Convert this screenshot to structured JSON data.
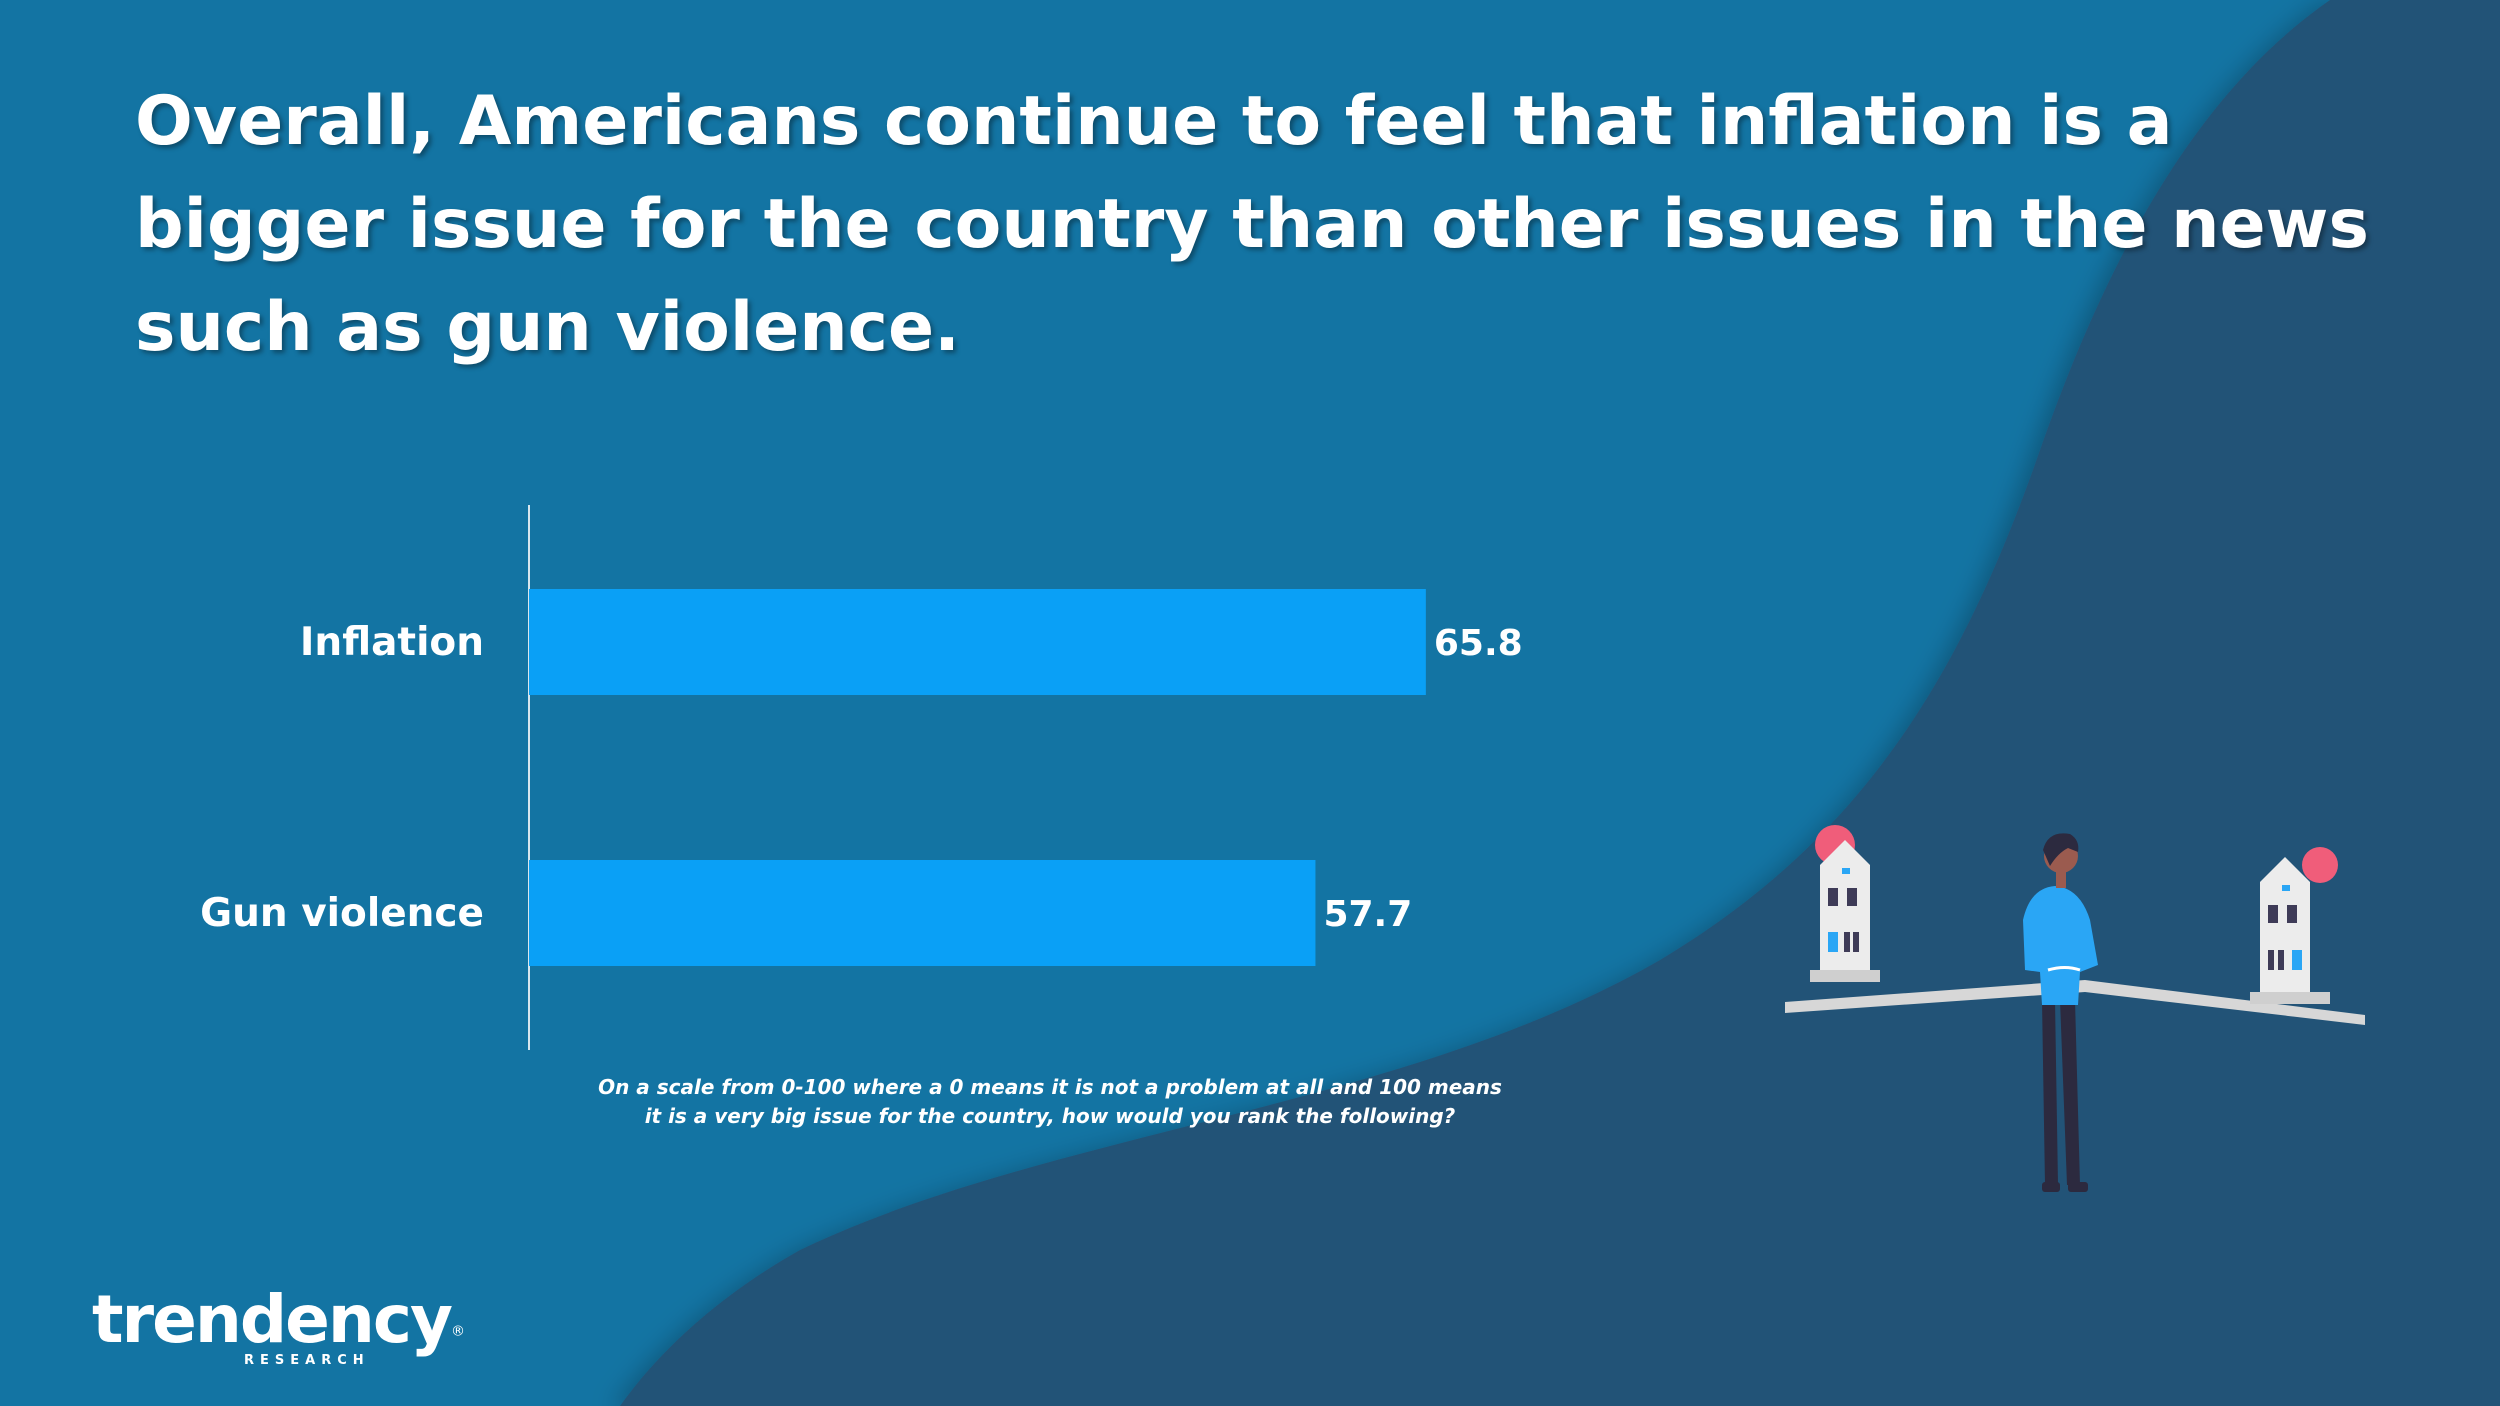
{
  "slide": {
    "title": "Overall, Americans continue to feel that inflation is a bigger issue for the country than other issues in the news such as gun violence.",
    "question": "On a scale from 0-100 where a 0 means it is not a problem at all and 100 means it is a very big issue for the country, how would you rank the following?"
  },
  "logo": {
    "name": "trendency",
    "trademark": "®",
    "tagline": "RESEARCH"
  },
  "colors": {
    "background": "#1374a3",
    "wave": "#235377",
    "bar": "#0aa0f6",
    "text": "#ffffff"
  },
  "chart_data": {
    "type": "bar",
    "orientation": "horizontal",
    "categories": [
      "Inflation",
      "Gun violence"
    ],
    "values": [
      65.8,
      57.7
    ],
    "xlim": [
      0,
      100
    ],
    "title": "",
    "xlabel": "",
    "ylabel": "",
    "grid": false,
    "legend": "none"
  }
}
